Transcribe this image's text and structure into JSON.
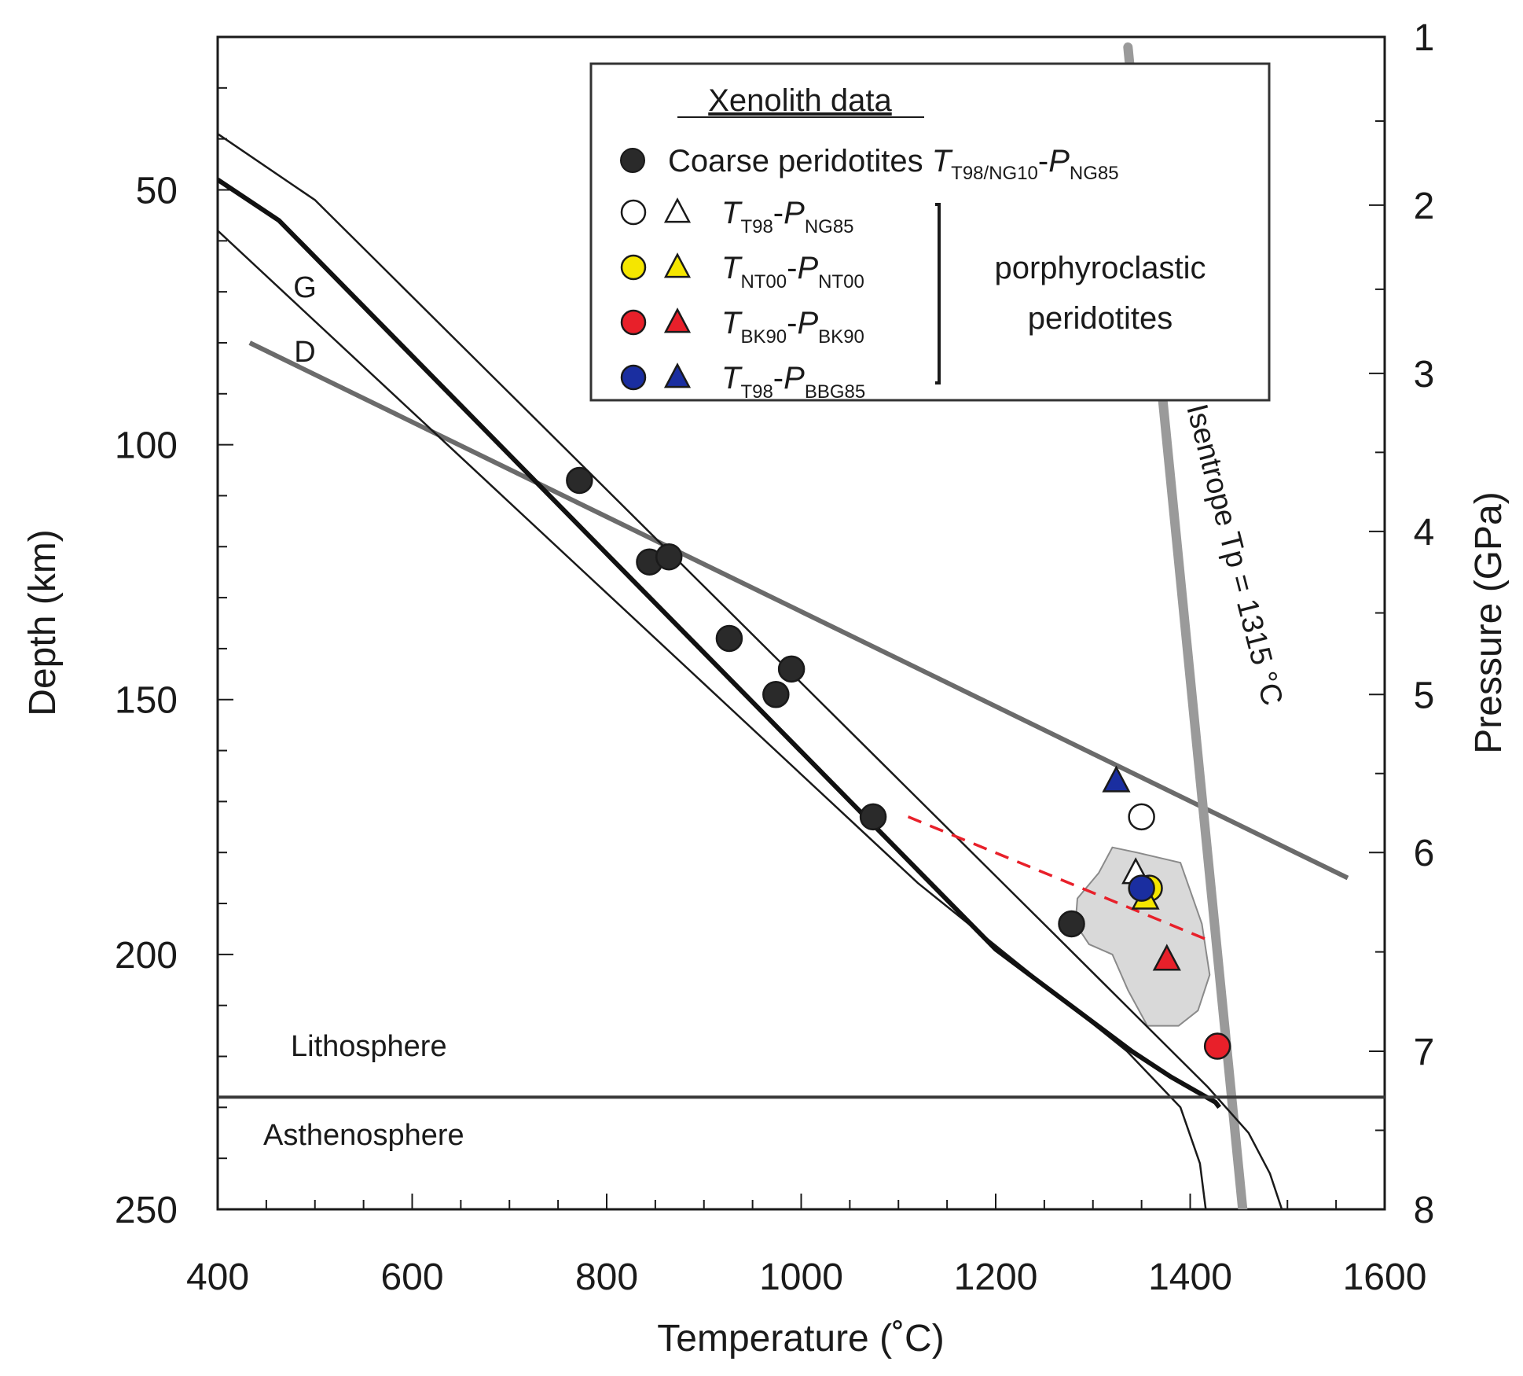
{
  "chart_data": {
    "type": "scatter",
    "xlabel": "Temperature (˚C)",
    "ylabel_left": "Depth (km)",
    "ylabel_right": "Pressure (GPa)",
    "xlim": [
      400,
      1600
    ],
    "ylim_depth": [
      20,
      250
    ],
    "x_ticks": [
      400,
      600,
      800,
      1000,
      1200,
      1400,
      1600
    ],
    "depth_ticks": [
      50,
      100,
      150,
      200,
      250
    ],
    "pressure_ticks": [
      1,
      2,
      3,
      4,
      5,
      6,
      7,
      8
    ],
    "pressure_depth_km": {
      "1": 20,
      "2": 53,
      "3": 86,
      "4": 117,
      "5": 149,
      "6": 180,
      "7": 219,
      "8": 250
    },
    "legend": {
      "title": "Xenolith data",
      "coarse": {
        "label": "Coarse peridotites",
        "t_main": "T",
        "t_sub": "T98/NG10",
        "dash": "-",
        "p_main": "P",
        "p_sub": "NG85"
      },
      "porph_rows": [
        {
          "t_main": "T",
          "t_sub": "T98",
          "p_main": "P",
          "p_sub": "NG85",
          "color": "#ffffff"
        },
        {
          "t_main": "T",
          "t_sub": "NT00",
          "p_main": "P",
          "p_sub": "NT00",
          "color": "#f5e600"
        },
        {
          "t_main": "T",
          "t_sub": "BK90",
          "p_main": "P",
          "p_sub": "BK90",
          "color": "#e8202a"
        },
        {
          "t_main": "T",
          "t_sub": "T98",
          "p_main": "P",
          "p_sub": "BBG85",
          "color": "#1a2ea0"
        }
      ],
      "porph_label_line1": "porphyroclastic",
      "porph_label_line2": "peridotites"
    },
    "annotations": {
      "isentrope": "Isentrope Tp = 1315 °C",
      "graphite": "G",
      "diamond": "D",
      "lithosphere": "Lithosphere",
      "asthenosphere": "Asthenosphere"
    },
    "lab_depth": 228,
    "series": [
      {
        "name": "Coarse peridotites",
        "marker": "circle",
        "color": "#2a2a2a",
        "points": [
          [
            772,
            107
          ],
          [
            844,
            123
          ],
          [
            864,
            122
          ],
          [
            926,
            138
          ],
          [
            990,
            144
          ],
          [
            974,
            149
          ],
          [
            1074,
            173
          ],
          [
            1278,
            194
          ]
        ]
      },
      {
        "name": "T98-NG85 circle",
        "marker": "circle",
        "color": "#ffffff",
        "points": [
          [
            1350,
            173
          ]
        ]
      },
      {
        "name": "T98-NG85 triangle",
        "marker": "triangle",
        "color": "#ffffff",
        "points": [
          [
            1344,
            184
          ]
        ]
      },
      {
        "name": "NT00 circle",
        "marker": "circle",
        "color": "#f5e600",
        "points": [
          [
            1358,
            187
          ]
        ]
      },
      {
        "name": "NT00 triangle",
        "marker": "triangle",
        "color": "#f5e600",
        "points": [
          [
            1354,
            189
          ]
        ]
      },
      {
        "name": "BK90 circle",
        "marker": "circle",
        "color": "#e8202a",
        "points": [
          [
            1428,
            218
          ]
        ]
      },
      {
        "name": "BK90 triangle",
        "marker": "triangle",
        "color": "#e8202a",
        "points": [
          [
            1376,
            201
          ]
        ]
      },
      {
        "name": "BBG85 circle",
        "marker": "circle",
        "color": "#1a2ea0",
        "points": [
          [
            1350,
            187
          ]
        ]
      },
      {
        "name": "BBG85 triangle",
        "marker": "triangle",
        "color": "#1a2ea0",
        "points": [
          [
            1324,
            166
          ]
        ]
      }
    ],
    "geotherm_center": [
      [
        400,
        48
      ],
      [
        463,
        56
      ],
      [
        1200,
        199
      ],
      [
        1340,
        219
      ],
      [
        1380,
        224
      ],
      [
        1426,
        229
      ],
      [
        1430,
        230
      ]
    ],
    "geotherm_upper": [
      [
        400,
        39
      ],
      [
        500,
        52
      ],
      [
        1260,
        196
      ],
      [
        1418,
        226
      ],
      [
        1460,
        235
      ],
      [
        1482,
        243
      ],
      [
        1496,
        251
      ]
    ],
    "geotherm_lower": [
      [
        400,
        58
      ],
      [
        1120,
        186
      ],
      [
        1335,
        219
      ],
      [
        1390,
        230
      ],
      [
        1410,
        241
      ],
      [
        1416,
        250
      ]
    ],
    "graphite_diamond_line": [
      [
        433,
        80
      ],
      [
        1562,
        185
      ]
    ],
    "isentrope_line": [
      [
        1336,
        22
      ],
      [
        1454,
        250
      ]
    ],
    "red_dashed_line": [
      [
        1110,
        173
      ],
      [
        1416,
        197
      ]
    ],
    "shaded_region": [
      [
        1284,
        189
      ],
      [
        1306,
        184
      ],
      [
        1320,
        179
      ],
      [
        1345,
        180
      ],
      [
        1390,
        182
      ],
      [
        1412,
        194
      ],
      [
        1420,
        204
      ],
      [
        1408,
        211
      ],
      [
        1388,
        214
      ],
      [
        1356,
        214
      ],
      [
        1336,
        207
      ],
      [
        1320,
        200
      ],
      [
        1296,
        198
      ],
      [
        1282,
        194
      ]
    ]
  }
}
